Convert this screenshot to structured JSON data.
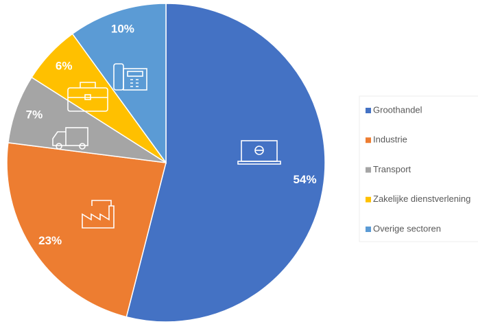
{
  "chart_data": {
    "type": "pie",
    "categories": [
      "Groothandel",
      "Industrie",
      "Transport",
      "Zakelijke dienstverlening",
      "Overige sectoren"
    ],
    "values": [
      54,
      23,
      7,
      6,
      10
    ],
    "value_labels": [
      "54%",
      "23%",
      "7%",
      "6%",
      "10%"
    ],
    "colors": [
      "#4472c4",
      "#ed7d31",
      "#a5a5a5",
      "#ffc000",
      "#5b9bd5"
    ],
    "start_angle": 0,
    "direction": "clockwise",
    "legend": "right"
  }
}
